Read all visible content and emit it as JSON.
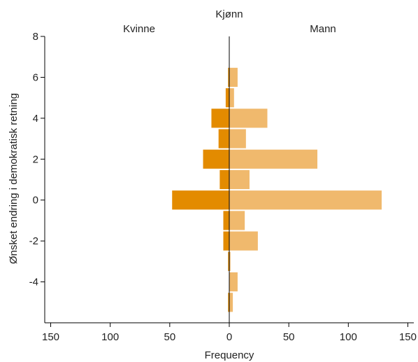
{
  "chart_data": {
    "type": "bar",
    "orientation": "horizontal-population-pyramid",
    "title": "Kjønn",
    "xlabel": "Frequency",
    "ylabel": "Ønsket endring i demokratisk retning",
    "xlim": [
      -155,
      155
    ],
    "ylim": [
      -6,
      8
    ],
    "x_ticks": [
      -150,
      -100,
      -50,
      0,
      50,
      100,
      150
    ],
    "x_tick_labels": [
      "150",
      "100",
      "50",
      "0",
      "50",
      "100",
      "150"
    ],
    "y_ticks": [
      -4,
      -2,
      0,
      2,
      4,
      6,
      8
    ],
    "y_tick_labels": [
      "-4",
      "-2",
      "0",
      "2",
      "4",
      "6",
      "8"
    ],
    "bin_width": 1,
    "grid": false,
    "categories": [
      -5,
      -4,
      -3,
      -2,
      -1,
      0,
      1,
      2,
      3,
      4,
      5,
      6
    ],
    "series": [
      {
        "name": "Kvinne",
        "side": "left",
        "color": "#e38b00",
        "values": [
          1,
          0,
          1,
          5,
          5,
          48,
          8,
          22,
          9,
          15,
          3,
          1
        ]
      },
      {
        "name": "Mann",
        "side": "right",
        "color": "#f0b96d",
        "values": [
          3,
          7,
          1,
          24,
          13,
          128,
          17,
          74,
          14,
          32,
          4,
          7
        ]
      }
    ]
  },
  "colors": {
    "left_bar": "#e38b00",
    "right_bar": "#f0b96d",
    "axis": "#000000",
    "background": "#ffffff"
  }
}
